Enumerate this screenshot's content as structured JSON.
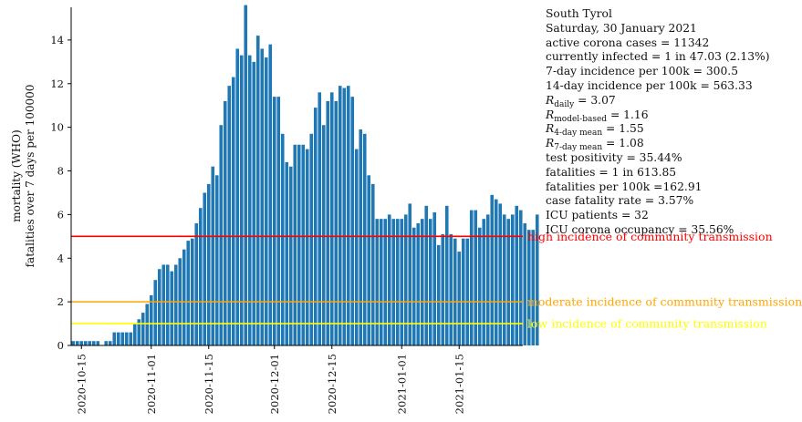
{
  "chart_data": {
    "type": "bar",
    "ylabel_line1": "mortality (WHO)",
    "ylabel_line2": "fatalities over 7 days per 100000",
    "ylim": [
      0,
      15.5
    ],
    "yticks": [
      0,
      2,
      4,
      6,
      8,
      10,
      12,
      14
    ],
    "x_start": "2020-10-13",
    "x_end": "2021-01-30",
    "xtick_labels": [
      "2020-10-15",
      "2020-11-01",
      "2020-11-15",
      "2020-12-01",
      "2020-12-15",
      "2021-01-01",
      "2021-01-15"
    ],
    "bar_color": "#1f77b4",
    "values": [
      0.2,
      0.2,
      0.2,
      0.2,
      0.2,
      0.2,
      0.2,
      0,
      0.2,
      0.2,
      0.6,
      0.6,
      0.6,
      0.6,
      0.6,
      1.0,
      1.2,
      1.5,
      1.9,
      2.3,
      3.0,
      3.5,
      3.7,
      3.7,
      3.4,
      3.7,
      4.0,
      4.4,
      4.8,
      4.9,
      5.6,
      6.3,
      7.0,
      7.4,
      8.2,
      7.8,
      10.1,
      11.2,
      11.9,
      12.3,
      13.6,
      13.3,
      15.6,
      13.3,
      13.0,
      14.2,
      13.6,
      13.2,
      13.8,
      11.4,
      11.4,
      9.7,
      8.4,
      8.2,
      9.2,
      9.2,
      9.2,
      9.0,
      9.7,
      10.9,
      11.6,
      10.1,
      11.2,
      11.6,
      11.2,
      11.9,
      11.8,
      11.9,
      11.4,
      9.0,
      9.9,
      9.7,
      7.8,
      7.4,
      5.8,
      5.8,
      5.8,
      6.0,
      5.8,
      5.8,
      5.8,
      6.0,
      6.5,
      5.4,
      5.6,
      5.8,
      6.4,
      5.8,
      6.1,
      4.6,
      5.1,
      6.4,
      5.1,
      4.9,
      4.3,
      4.9,
      4.9,
      6.2,
      6.2,
      5.4,
      5.8,
      6.0,
      6.9,
      6.7,
      6.5,
      6.0,
      5.8,
      6.0,
      6.4,
      6.2,
      5.6,
      5.3,
      5.3,
      6.0
    ],
    "thresholds": [
      {
        "value": 5,
        "color": "#ff0000",
        "label": "high incidence of community transmission"
      },
      {
        "value": 2,
        "color": "#ffa500",
        "label": "moderate incidence of community transmission"
      },
      {
        "value": 1,
        "color": "#ffff00",
        "label": "low incidence of community transmission"
      }
    ]
  },
  "info": {
    "region": "South Tyrol",
    "date": "Saturday, 30 January 2021",
    "active_cases": "active corona cases = 11342",
    "currently_infected": "currently infected = 1 in 47.03 (2.13%)",
    "incidence_7day": "7-day incidence per 100k = 300.5",
    "incidence_14day": "14-day incidence per 100k = 563.33",
    "r_daily_sub": "daily",
    "r_daily_value": " = 3.07",
    "r_model_sub": "model-based",
    "r_model_value": " = 1.16",
    "r_4day_sub": "4-day mean",
    "r_4day_value": " = 1.55",
    "r_7day_sub": "7-day mean",
    "r_7day_value": " = 1.08",
    "r_symbol": "R",
    "test_positivity": "test positivity = 35.44%",
    "fatalities": "fatalities = 1 in 613.85",
    "fatalities_per_100k": "fatalities per 100k =162.91",
    "case_fatality_rate": "case fatality rate = 3.57%",
    "icu_patients": "ICU patients = 32",
    "icu_occupancy": "ICU corona occupancy = 35.56%"
  }
}
